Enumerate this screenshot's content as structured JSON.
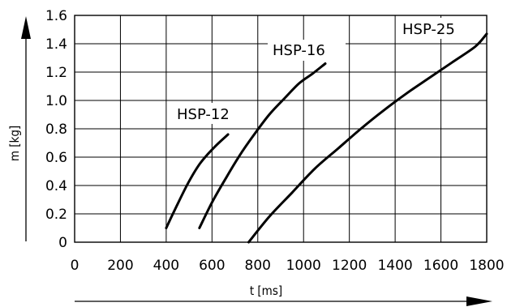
{
  "chart_data": {
    "type": "line",
    "xlabel": "t [ms]",
    "ylabel": "m [kg]",
    "xlim": [
      0,
      1800
    ],
    "ylim": [
      0,
      1.6
    ],
    "x_ticks": [
      "0",
      "200",
      "400",
      "600",
      "800",
      "1000",
      "1200",
      "1400",
      "1600",
      "1800"
    ],
    "y_ticks": [
      "0",
      "0.2",
      "0.4",
      "0.6",
      "0.8",
      "1.0",
      "1.2",
      "1.4",
      "1.6"
    ],
    "grid": true,
    "series": [
      {
        "name": "HSP-12",
        "x": [
          400,
          450,
          500,
          550,
          610,
          670
        ],
        "y": [
          0.1,
          0.27,
          0.43,
          0.56,
          0.67,
          0.76
        ]
      },
      {
        "name": "HSP-16",
        "x": [
          545,
          600,
          660,
          720,
          780,
          850,
          920,
          980,
          1040,
          1095
        ],
        "y": [
          0.1,
          0.28,
          0.45,
          0.61,
          0.75,
          0.9,
          1.02,
          1.12,
          1.19,
          1.26
        ]
      },
      {
        "name": "HSP-25",
        "x": [
          760,
          850,
          950,
          1050,
          1150,
          1250,
          1350,
          1450,
          1550,
          1650,
          1750,
          1800
        ],
        "y": [
          0.0,
          0.18,
          0.35,
          0.52,
          0.66,
          0.8,
          0.93,
          1.05,
          1.16,
          1.27,
          1.38,
          1.47
        ]
      }
    ]
  }
}
